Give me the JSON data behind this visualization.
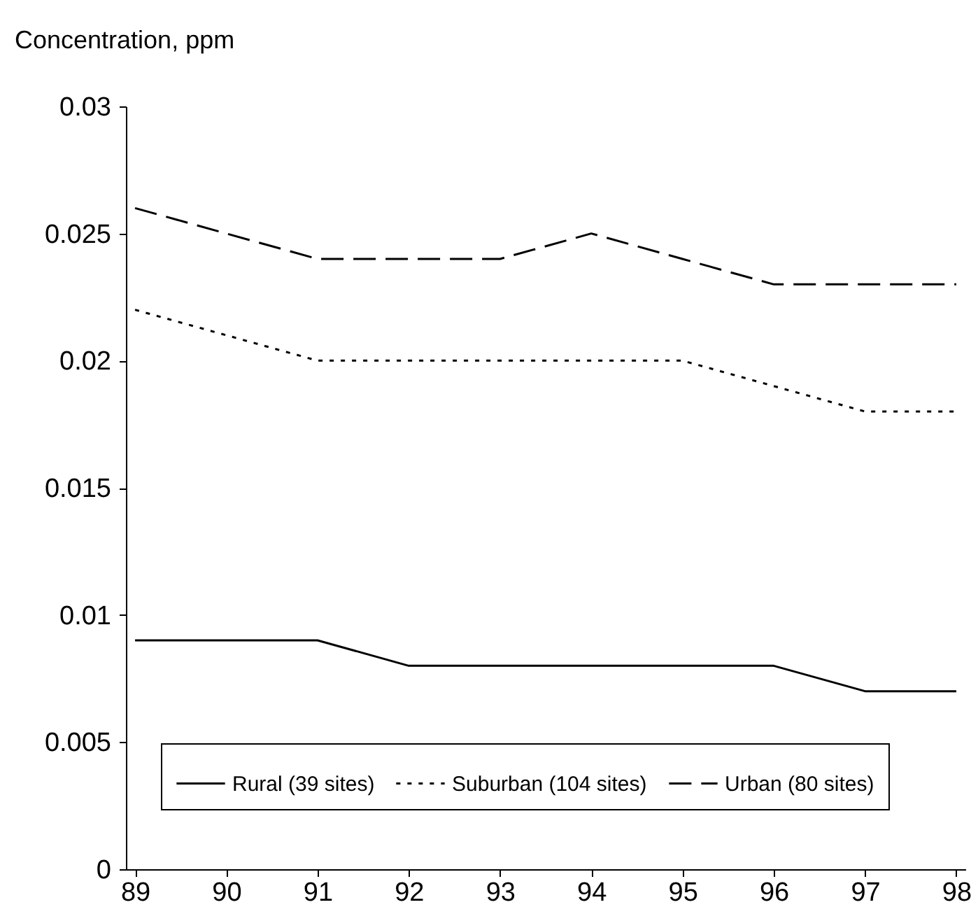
{
  "chart_data": {
    "type": "line",
    "ylabel": "Concentration, ppm",
    "categories": [
      "89",
      "90",
      "91",
      "92",
      "93",
      "94",
      "95",
      "96",
      "97",
      "98"
    ],
    "series": [
      {
        "name": "Rural (39 sites)",
        "color": "#000000",
        "line_style": "solid",
        "values": [
          0.009,
          0.009,
          0.009,
          0.008,
          0.008,
          0.008,
          0.008,
          0.008,
          0.007,
          0.007
        ]
      },
      {
        "name": "Suburban (104 sites)",
        "color": "#000000",
        "line_style": "dotted",
        "values": [
          0.022,
          0.021,
          0.02,
          0.02,
          0.02,
          0.02,
          0.02,
          0.019,
          0.018,
          0.018
        ]
      },
      {
        "name": "Urban (80 sites)",
        "color": "#000000",
        "line_style": "dashed",
        "values": [
          0.026,
          0.025,
          0.024,
          0.024,
          0.024,
          0.025,
          0.024,
          0.023,
          0.023,
          0.023
        ]
      }
    ],
    "ylim": [
      0,
      0.03
    ],
    "yticks": [
      0,
      0.005,
      0.01,
      0.015,
      0.02,
      0.025,
      0.03
    ],
    "grid": false,
    "legend": "bottom"
  }
}
